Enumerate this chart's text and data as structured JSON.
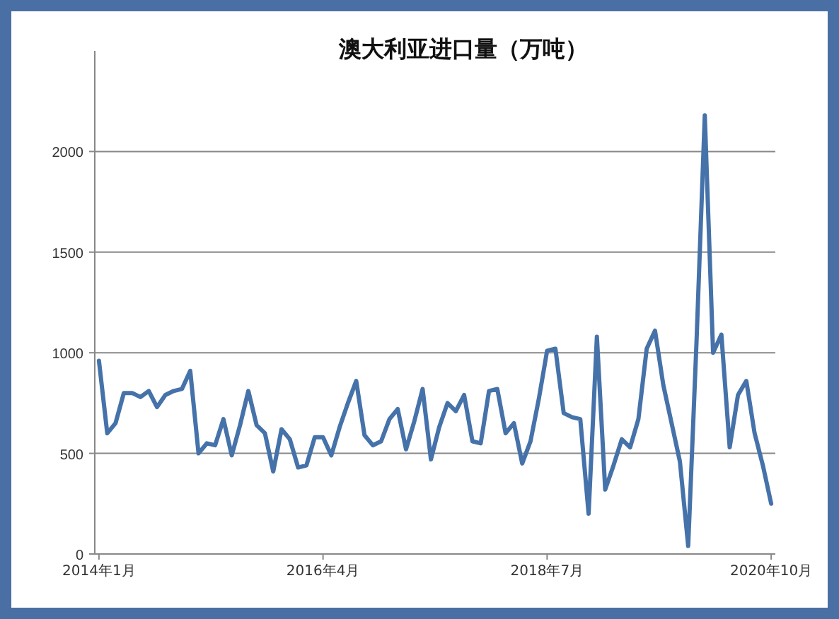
{
  "chart_data": {
    "type": "line",
    "title": "澳大利亚进口量（万吨）",
    "categories": [
      "2014年1月",
      null,
      null,
      null,
      null,
      null,
      null,
      null,
      null,
      null,
      null,
      null,
      null,
      null,
      null,
      null,
      null,
      null,
      null,
      null,
      null,
      null,
      null,
      null,
      null,
      null,
      null,
      "2016年4月",
      null,
      null,
      null,
      null,
      null,
      null,
      null,
      null,
      null,
      null,
      null,
      null,
      null,
      null,
      null,
      null,
      null,
      null,
      null,
      null,
      null,
      null,
      null,
      null,
      null,
      null,
      "2018年7月",
      null,
      null,
      null,
      null,
      null,
      null,
      null,
      null,
      null,
      null,
      null,
      null,
      null,
      null,
      null,
      null,
      null,
      null,
      null,
      null,
      null,
      null,
      null,
      null,
      null,
      null,
      "2020年10月"
    ],
    "series": [
      {
        "color": "#4672aa",
        "values": [
          960,
          600,
          650,
          800,
          800,
          780,
          810,
          730,
          790,
          810,
          820,
          910,
          500,
          550,
          540,
          670,
          490,
          640,
          810,
          640,
          600,
          410,
          620,
          570,
          430,
          440,
          580,
          580,
          490,
          630,
          750,
          860,
          590,
          540,
          560,
          670,
          720,
          520,
          660,
          820,
          470,
          630,
          750,
          710,
          790,
          560,
          550,
          810,
          820,
          600,
          650,
          450,
          560,
          770,
          1010,
          1020,
          700,
          680,
          670,
          200,
          1080,
          320,
          440,
          570,
          530,
          670,
          1020,
          1110,
          840,
          650,
          460,
          40,
          1050,
          2180,
          1000,
          1090,
          530,
          790,
          860,
          600,
          440,
          250
        ]
      }
    ],
    "ylim": [
      0,
      2500
    ],
    "yticks": [
      0,
      500,
      1000,
      1500,
      2000
    ],
    "grid": "y",
    "marker": "none",
    "line_style": "solid"
  }
}
